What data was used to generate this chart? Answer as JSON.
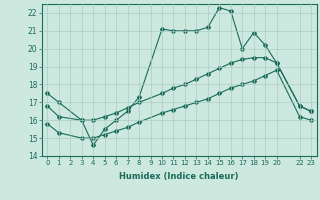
{
  "title": "",
  "xlabel": "Humidex (Indice chaleur)",
  "bg_color": "#cce8df",
  "grid_color": "#aaccc4",
  "line_color": "#1a6b5a",
  "ylim": [
    14,
    22.5
  ],
  "xlim": [
    -0.5,
    23.5
  ],
  "yticks": [
    14,
    15,
    16,
    17,
    18,
    19,
    20,
    21,
    22
  ],
  "xticks": [
    0,
    1,
    2,
    3,
    4,
    5,
    6,
    7,
    8,
    9,
    10,
    11,
    12,
    13,
    14,
    15,
    16,
    17,
    18,
    19,
    20,
    22,
    23
  ],
  "xtick_labels": [
    "0",
    "1",
    "2",
    "3",
    "4",
    "5",
    "6",
    "7",
    "8",
    "9",
    "10",
    "11",
    "12",
    "13",
    "14",
    "15",
    "16",
    "17",
    "18",
    "19",
    "20",
    "22",
    "23"
  ],
  "line1_x": [
    0,
    1,
    3,
    4,
    5,
    6,
    7,
    8,
    10,
    11,
    12,
    13,
    14,
    15,
    16,
    17,
    18,
    19,
    20,
    22,
    23
  ],
  "line1_y": [
    17.5,
    17.0,
    16.0,
    14.6,
    15.5,
    16.0,
    16.5,
    17.3,
    21.1,
    21.0,
    21.0,
    21.0,
    21.2,
    22.3,
    22.1,
    20.0,
    20.9,
    20.2,
    19.2,
    16.8,
    16.5
  ],
  "line2_x": [
    0,
    1,
    3,
    4,
    5,
    6,
    7,
    8,
    10,
    11,
    12,
    13,
    14,
    15,
    16,
    17,
    18,
    19,
    20,
    22,
    23
  ],
  "line2_y": [
    16.8,
    16.2,
    16.0,
    16.0,
    16.2,
    16.4,
    16.7,
    17.0,
    17.5,
    17.8,
    18.0,
    18.3,
    18.6,
    18.9,
    19.2,
    19.4,
    19.5,
    19.5,
    19.2,
    16.8,
    16.5
  ],
  "line3_x": [
    0,
    1,
    3,
    4,
    5,
    6,
    7,
    8,
    10,
    11,
    12,
    13,
    14,
    15,
    16,
    17,
    18,
    19,
    20,
    22,
    23
  ],
  "line3_y": [
    15.8,
    15.3,
    15.0,
    15.0,
    15.2,
    15.4,
    15.6,
    15.9,
    16.4,
    16.6,
    16.8,
    17.0,
    17.2,
    17.5,
    17.8,
    18.0,
    18.2,
    18.5,
    18.8,
    16.2,
    16.0
  ]
}
